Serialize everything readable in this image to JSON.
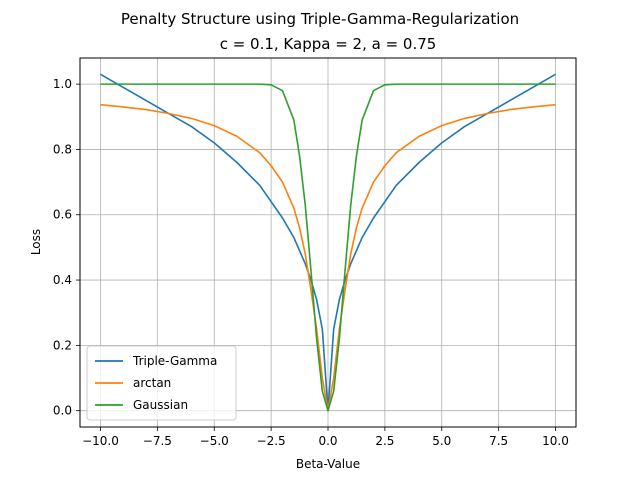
{
  "chart_data": {
    "type": "line",
    "title": "Penalty Structure using Triple-Gamma-Regularization",
    "subtitle": "c = 0.1, Kappa = 2, a = 0.75",
    "xlabel": "Beta-Value",
    "ylabel": "Loss",
    "xlim": [
      -10.9,
      10.9
    ],
    "ylim": [
      -0.05,
      1.08
    ],
    "xticks": [
      -10,
      -7.5,
      -5,
      -2.5,
      0,
      2.5,
      5,
      7.5,
      10
    ],
    "xtick_labels": [
      "−10.0",
      "−7.5",
      "−5.0",
      "−2.5",
      "0.0",
      "2.5",
      "5.0",
      "7.5",
      "10.0"
    ],
    "yticks": [
      0,
      0.2,
      0.4,
      0.6,
      0.8,
      1.0
    ],
    "ytick_labels": [
      "0.0",
      "0.2",
      "0.4",
      "0.6",
      "0.8",
      "1.0"
    ],
    "grid": true,
    "legend_position": "lower-left",
    "x": [
      -10,
      -9,
      -8,
      -7,
      -6,
      -5,
      -4,
      -3,
      -2.5,
      -2,
      -1.5,
      -1.25,
      -1,
      -0.75,
      -0.5,
      -0.25,
      0,
      0.25,
      0.5,
      0.75,
      1,
      1.25,
      1.5,
      2,
      2.5,
      3,
      4,
      5,
      6,
      7,
      8,
      9,
      10
    ],
    "series": [
      {
        "name": "Triple-Gamma",
        "color": "#1f77b4",
        "values": [
          1.03,
          0.99,
          0.95,
          0.91,
          0.87,
          0.82,
          0.76,
          0.69,
          0.64,
          0.59,
          0.53,
          0.49,
          0.45,
          0.4,
          0.34,
          0.25,
          0.0,
          0.25,
          0.34,
          0.4,
          0.45,
          0.49,
          0.53,
          0.59,
          0.64,
          0.69,
          0.76,
          0.82,
          0.87,
          0.91,
          0.95,
          0.99,
          1.03
        ]
      },
      {
        "name": "arctan",
        "color": "#ff7f0e",
        "values": [
          0.937,
          0.93,
          0.922,
          0.91,
          0.895,
          0.873,
          0.84,
          0.79,
          0.75,
          0.7,
          0.62,
          0.56,
          0.48,
          0.37,
          0.25,
          0.1,
          0.0,
          0.1,
          0.25,
          0.37,
          0.48,
          0.56,
          0.62,
          0.7,
          0.75,
          0.79,
          0.84,
          0.873,
          0.895,
          0.91,
          0.922,
          0.93,
          0.937
        ]
      },
      {
        "name": "Gaussian",
        "color": "#2ca02c",
        "values": [
          1.0,
          1.0,
          1.0,
          1.0,
          1.0,
          1.0,
          1.0,
          1.0,
          0.998,
          0.98,
          0.89,
          0.78,
          0.63,
          0.43,
          0.22,
          0.06,
          0.0,
          0.06,
          0.22,
          0.43,
          0.63,
          0.78,
          0.89,
          0.98,
          0.998,
          1.0,
          1.0,
          1.0,
          1.0,
          1.0,
          1.0,
          1.0,
          1.0
        ]
      }
    ]
  }
}
